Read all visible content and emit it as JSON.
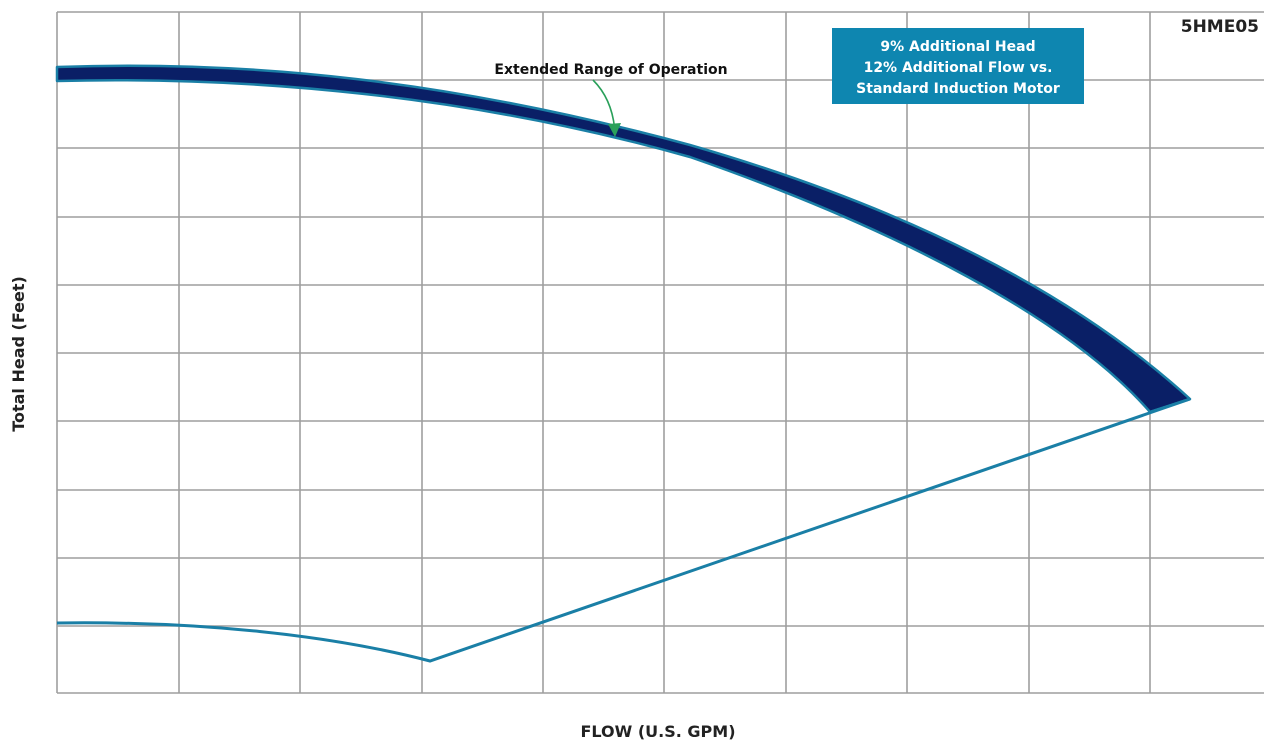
{
  "chart_data": {
    "type": "line",
    "title": "5HME05",
    "xlabel": "FLOW (U.S. GPM)",
    "ylabel": "Total Head (Feet)",
    "grid": true,
    "xlim": [
      0,
      10
    ],
    "ylim": [
      0,
      10
    ],
    "x_tick_labels": [],
    "y_tick_labels": [],
    "series": [
      {
        "role": "upper-boundary",
        "color": "#1a7fa6",
        "x": [
          0,
          1,
          2,
          3,
          4,
          5,
          6,
          7,
          8,
          9,
          9.33
        ],
        "y": [
          9.05,
          9.05,
          8.95,
          8.7,
          8.3,
          7.8,
          7.15,
          6.3,
          5.25,
          4.05,
          4.3
        ]
      },
      {
        "role": "extended-range-band",
        "color": "#0a1f66",
        "x": [
          0,
          1,
          2,
          3,
          4,
          5,
          6,
          7,
          8,
          9
        ],
        "y_top": [
          9.05,
          9.05,
          8.95,
          8.7,
          8.3,
          7.8,
          7.15,
          6.3,
          5.25,
          4.05
        ],
        "y_bottom": [
          8.85,
          8.85,
          8.7,
          8.4,
          7.95,
          7.4,
          6.65,
          5.75,
          4.55,
          4.05
        ]
      },
      {
        "role": "lower-boundary",
        "color": "#1a7fa6",
        "x": [
          0,
          1,
          2,
          3.07,
          4,
          5,
          6,
          7,
          8,
          9,
          9.33
        ],
        "y": [
          1.0,
          1.0,
          0.85,
          0.45,
          1.1,
          1.8,
          2.5,
          3.1,
          3.7,
          4.05,
          4.3
        ]
      }
    ],
    "annotations": [
      {
        "text": "Extended Range of Operation",
        "points_to": "extended-range-band"
      }
    ],
    "info_box": {
      "lines": [
        "9% Additional Head",
        "12% Additional Flow vs.",
        "Standard Induction Motor"
      ],
      "background": "#0e86b0"
    },
    "colors": {
      "grid": "#9e9e9e",
      "band_fill": "#0a1f66",
      "outline": "#1a7fa6",
      "arrow": "#2aa05a"
    }
  }
}
